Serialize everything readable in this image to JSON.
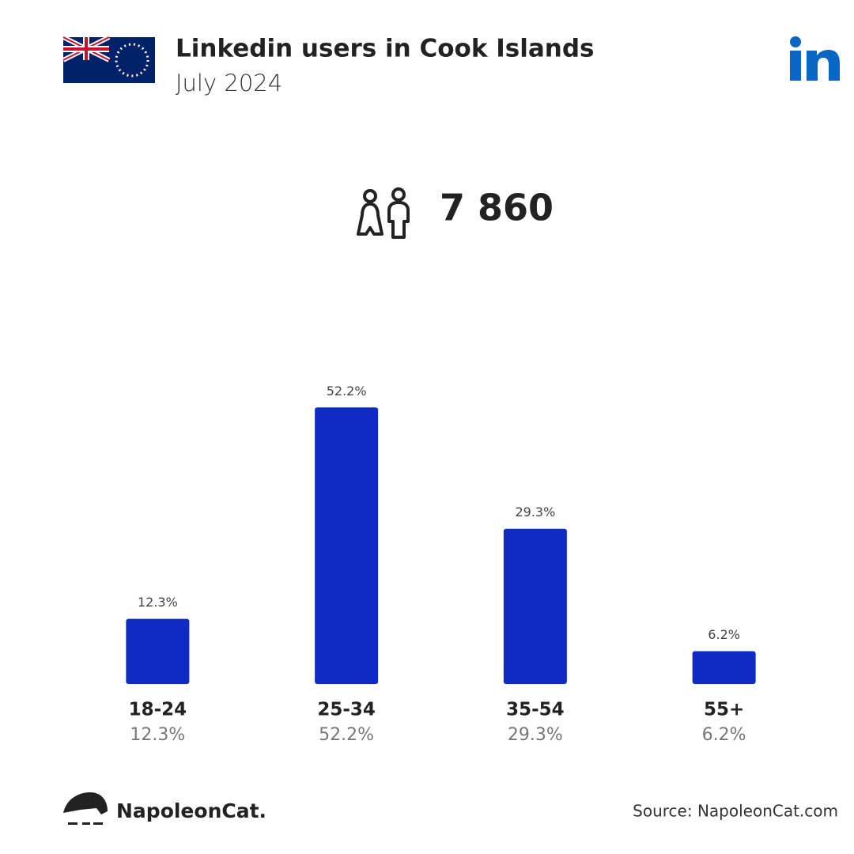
{
  "chart_data": {
    "type": "bar",
    "title": "Linkedin users in Cook Islands",
    "subtitle": "July 2024",
    "total": {
      "value": 7860,
      "label": "7 860"
    },
    "categories": [
      "18-24",
      "25-34",
      "35-54",
      "55+"
    ],
    "values": [
      12.3,
      52.2,
      29.3,
      6.2
    ],
    "value_labels": [
      "12.3%",
      "52.2%",
      "29.3%",
      "6.2%"
    ],
    "color": "#0f2bc4",
    "brand": "NapoleonCat.",
    "source": "Source: NapoleonCat.com"
  }
}
